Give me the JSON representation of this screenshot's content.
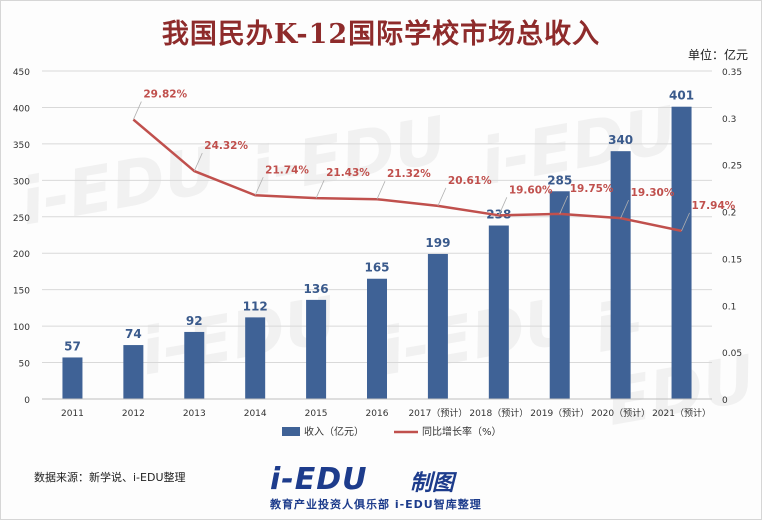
{
  "title": "我国民办K-12国际学校市场总收入",
  "unit_label": "单位：亿元",
  "source": "数据来源：新学说、i-EDU整理",
  "brand": {
    "logo_main": "i-EDU",
    "logo_side": "制图",
    "tagline": "教育产业投资人俱乐部   i-EDU智库整理"
  },
  "watermark": "i-EDU",
  "colors": {
    "bar": "#3f6296",
    "line": "#c0504d",
    "title": "#8e2b2b",
    "bar_label": "#3a5a8c",
    "line_label": "#c0504d"
  },
  "chart_data": {
    "type": "bar",
    "categories": [
      "2011",
      "2012",
      "2013",
      "2014",
      "2015",
      "2016",
      "2017（预计）",
      "2018（预计）",
      "2019（预计）",
      "2020（预计）",
      "2021（预计）"
    ],
    "series": [
      {
        "name": "收入（亿元）",
        "type": "bar",
        "axis": "left",
        "values": [
          57,
          74,
          92,
          112,
          136,
          165,
          199,
          238,
          285,
          340,
          401
        ],
        "labels": [
          "57",
          "74",
          "92",
          "112",
          "136",
          "165",
          "199",
          "238",
          "285",
          "340",
          "401"
        ]
      },
      {
        "name": "同比增长率（%）",
        "type": "line",
        "axis": "right",
        "values": [
          null,
          0.2982,
          0.2432,
          0.2174,
          0.2143,
          0.2132,
          0.2061,
          0.196,
          0.1975,
          0.193,
          0.1794
        ],
        "labels": [
          "",
          "29.82%",
          "24.32%",
          "21.74%",
          "21.43%",
          "21.32%",
          "20.61%",
          "19.60%",
          "19.75%",
          "19.30%",
          "17.94%"
        ]
      }
    ],
    "y_left": {
      "min": 0,
      "max": 450,
      "step": 50,
      "ticks": [
        "0",
        "50",
        "100",
        "150",
        "200",
        "250",
        "300",
        "350",
        "400",
        "450"
      ]
    },
    "y_right": {
      "min": 0,
      "max": 0.35,
      "step": 0.05,
      "ticks": [
        "0",
        "0.05",
        "0.1",
        "0.15",
        "0.2",
        "0.25",
        "0.3",
        "0.35"
      ]
    },
    "grid": true,
    "legend_position": "bottom"
  }
}
